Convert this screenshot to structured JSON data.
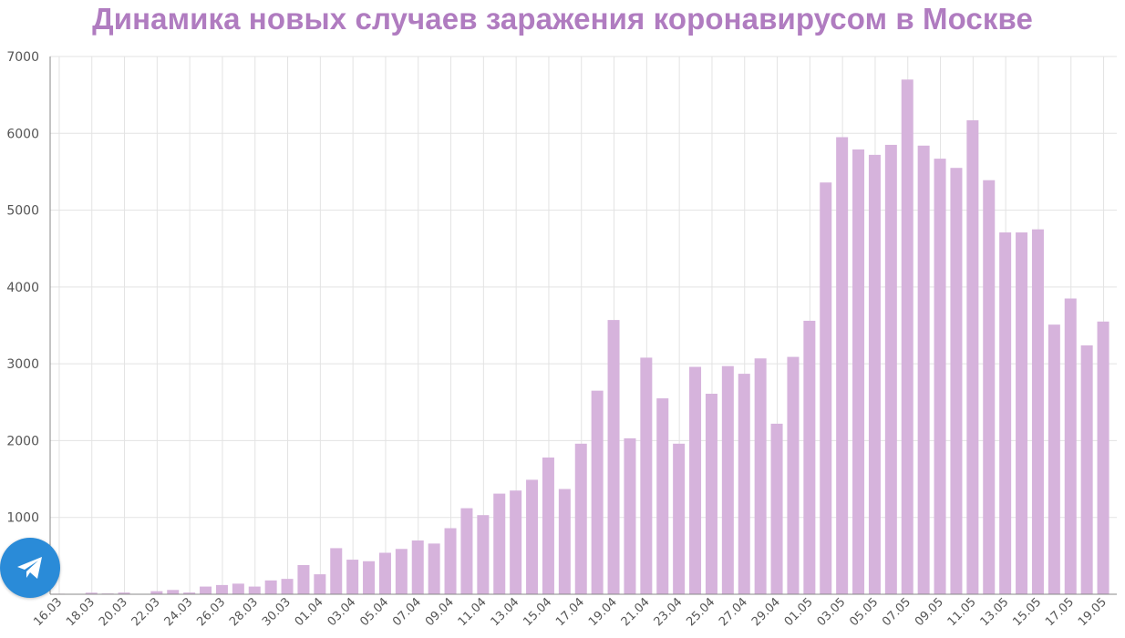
{
  "colors": {
    "bar": "#d6b3dc",
    "title": "#b07cc0",
    "grid": "#e3e3e3",
    "axis": "#888888",
    "telegram": "#2a8bd8"
  },
  "telegram_button": {
    "icon": "telegram-paper-plane-icon"
  },
  "chart_data": {
    "type": "bar",
    "title": "Динамика новых случаев заражения коронавирусом в Москве",
    "xlabel": "",
    "ylabel": "",
    "ylim": [
      0,
      7000
    ],
    "yticks": [
      1000,
      2000,
      3000,
      4000,
      5000,
      6000,
      7000
    ],
    "grid": true,
    "tick_labels": [
      "16.03",
      "18.03",
      "20.03",
      "22.03",
      "24.03",
      "26.03",
      "28.03",
      "30.03",
      "01.04",
      "03.04",
      "05.04",
      "07.04",
      "09.04",
      "11.04",
      "13.04",
      "15.04",
      "17.04",
      "19.04",
      "21.04",
      "23.04",
      "25.04",
      "27.04",
      "29.04",
      "01.05",
      "03.05",
      "05.05",
      "07.05",
      "09.05",
      "11.05",
      "13.05",
      "15.05",
      "17.05",
      "19.05"
    ],
    "categories": [
      "16.03",
      "17.03",
      "18.03",
      "19.03",
      "20.03",
      "21.03",
      "22.03",
      "23.03",
      "24.03",
      "25.03",
      "26.03",
      "27.03",
      "28.03",
      "29.03",
      "30.03",
      "31.03",
      "01.04",
      "02.04",
      "03.04",
      "04.04",
      "05.04",
      "06.04",
      "07.04",
      "08.04",
      "09.04",
      "10.04",
      "11.04",
      "12.04",
      "13.04",
      "14.04",
      "15.04",
      "16.04",
      "17.04",
      "18.04",
      "19.04",
      "20.04",
      "21.04",
      "22.04",
      "23.04",
      "24.04",
      "25.04",
      "26.04",
      "27.04",
      "28.04",
      "29.04",
      "30.04",
      "01.05",
      "02.05",
      "03.05",
      "04.05",
      "05.05",
      "06.05",
      "07.05",
      "08.05",
      "09.05",
      "10.05",
      "11.05",
      "12.05",
      "13.05",
      "14.05",
      "15.05",
      "16.05",
      "17.05",
      "18.05",
      "19.05",
      "20.05"
    ],
    "values": [
      7,
      0,
      20,
      10,
      22,
      0,
      40,
      56,
      22,
      100,
      120,
      138,
      100,
      180,
      200,
      380,
      260,
      600,
      450,
      430,
      540,
      590,
      700,
      660,
      860,
      1120,
      1030,
      1310,
      1350,
      1490,
      1780,
      1370,
      1960,
      2650,
      3570,
      2030,
      3080,
      2550,
      1960,
      2960,
      2610,
      2970,
      2870,
      3070,
      2220,
      3090,
      3560,
      5360,
      5950,
      5790,
      5720,
      5850,
      6700,
      5840,
      5670,
      5550,
      6170,
      5390,
      4710,
      4710,
      4750,
      3510,
      3850,
      3240,
      3550,
      0
    ]
  }
}
